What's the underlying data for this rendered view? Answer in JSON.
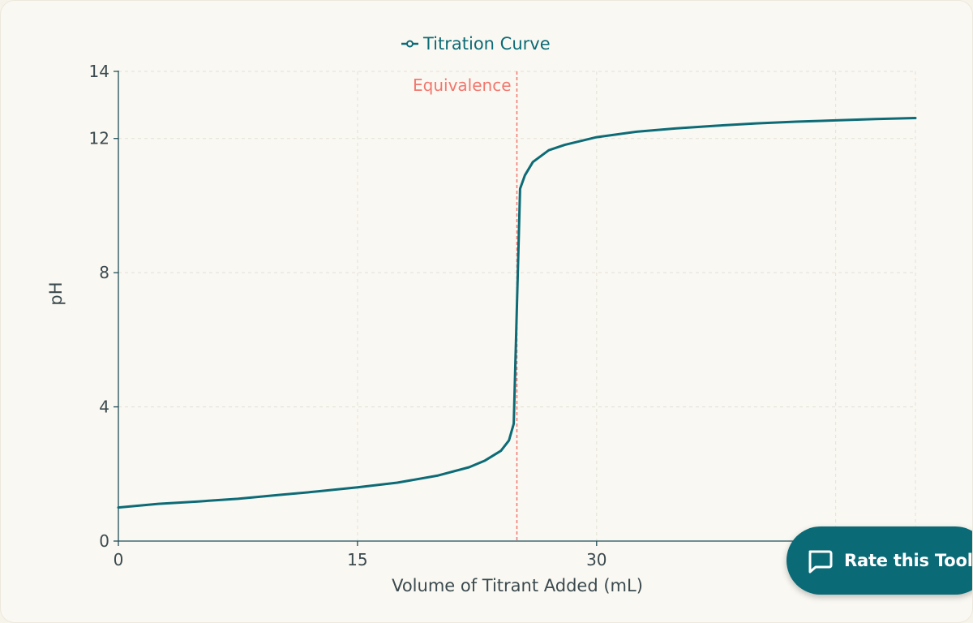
{
  "colors": {
    "line": "#0c6b76",
    "equivalence": "#f2766d",
    "axis": "#1f4f57",
    "grid": "#e3e0d6",
    "text": "#3b4a4f",
    "button": "#0a6a76"
  },
  "legend": {
    "series_label": "Titration Curve",
    "icon": "line-with-circle-marker"
  },
  "chart_data": {
    "type": "line",
    "title": "",
    "xlabel": "Volume of Titrant Added (mL)",
    "ylabel": "pH",
    "xlim": [
      0,
      50
    ],
    "ylim": [
      0,
      14
    ],
    "x_ticks": [
      0,
      15,
      30
    ],
    "y_ticks": [
      0,
      4,
      8,
      12,
      14
    ],
    "grid": true,
    "legend_position": "top-center",
    "annotations": [
      {
        "type": "vertical-line",
        "x": 25,
        "label": "Equivalence",
        "style": "dashed"
      }
    ],
    "series": [
      {
        "name": "Titration Curve",
        "x": [
          0,
          2.5,
          5,
          7.5,
          10,
          12.5,
          15,
          17.5,
          20,
          22,
          23,
          24,
          24.5,
          24.8,
          25,
          25.2,
          25.5,
          26,
          27,
          28,
          30,
          32.5,
          35,
          37.5,
          40,
          42.5,
          45,
          47.5,
          50
        ],
        "y": [
          1.0,
          1.11,
          1.18,
          1.26,
          1.37,
          1.48,
          1.6,
          1.74,
          1.95,
          2.2,
          2.4,
          2.69,
          3.0,
          3.5,
          7.0,
          10.5,
          10.9,
          11.3,
          11.65,
          11.81,
          12.04,
          12.2,
          12.3,
          12.38,
          12.45,
          12.5,
          12.54,
          12.58,
          12.61
        ]
      }
    ]
  },
  "button": {
    "label": "Rate this Tool",
    "icon": "chat-bubble-icon"
  }
}
